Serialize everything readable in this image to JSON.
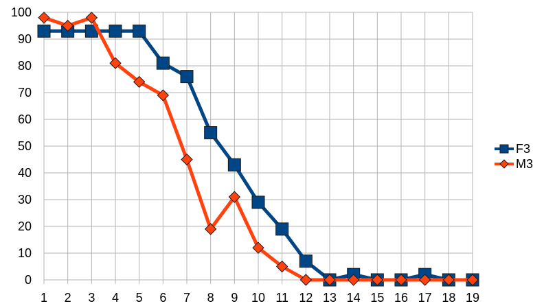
{
  "chart_data": {
    "type": "line",
    "title": "",
    "xlabel": "",
    "ylabel": "",
    "x": [
      1,
      2,
      3,
      4,
      5,
      6,
      7,
      8,
      9,
      10,
      11,
      12,
      13,
      14,
      15,
      16,
      17,
      18,
      19
    ],
    "ylim": [
      0,
      100
    ],
    "yticks": [
      0,
      10,
      20,
      30,
      40,
      50,
      60,
      70,
      80,
      90,
      100
    ],
    "grid": true,
    "legend_position": "right",
    "series": [
      {
        "name": "F3",
        "color": "#004586",
        "marker": "square",
        "values": [
          93,
          93,
          93,
          93,
          93,
          81,
          76,
          55,
          43,
          29,
          19,
          7,
          0,
          2,
          0,
          0,
          2,
          0,
          0
        ]
      },
      {
        "name": "M3",
        "color": "#ff420e",
        "marker": "diamond",
        "values": [
          98,
          95,
          98,
          81,
          74,
          69,
          45,
          19,
          31,
          12,
          5,
          0,
          0,
          0,
          0,
          0,
          0,
          0,
          0
        ]
      }
    ]
  }
}
